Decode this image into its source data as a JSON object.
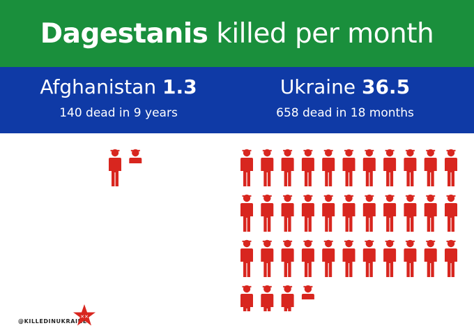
{
  "header": {
    "title_bold": "Dagestanis",
    "title_rest": "killed per month"
  },
  "stats": {
    "afghanistan": {
      "label": "Afghanistan",
      "value": "1.3",
      "sub": "140 dead in 9 years"
    },
    "ukraine": {
      "label": "Ukraine",
      "value": "36.5",
      "sub": "658 dead in 18 months"
    }
  },
  "chart_data": {
    "type": "pictogram",
    "title": "Dagestanis killed per month",
    "unit": "1 figure = 1 person killed per month",
    "categories": [
      "Afghanistan",
      "Ukraine"
    ],
    "values": [
      1.3,
      36.5
    ],
    "totals": [
      {
        "category": "Afghanistan",
        "dead": 140,
        "period": "9 years"
      },
      {
        "category": "Ukraine",
        "dead": 658,
        "period": "18 months"
      }
    ],
    "colors": {
      "figure": "#d8261f",
      "title_band": "#1a8f3c",
      "stats_band": "#0f3aa6"
    }
  },
  "footer": {
    "handle": "@KILLEDINUKRAINE",
    "logo_icon": "red-star-logo-icon",
    "logo_color": "#d8261f"
  }
}
